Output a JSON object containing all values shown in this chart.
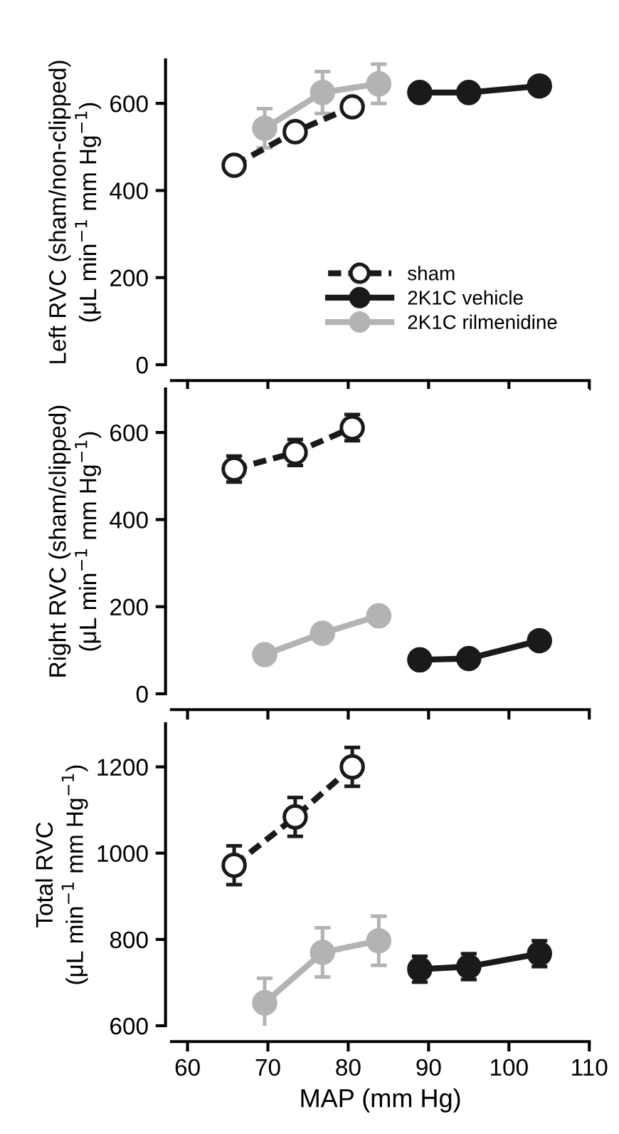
{
  "chart_data": [
    {
      "type": "line",
      "ylabel": "Left RVC (sham/non-clipped)\n(μL min$^{−1}$ mm Hg$^{−1}$)",
      "xlim": [
        58,
        110
      ],
      "xticks": [
        60,
        70,
        80,
        90,
        100,
        110
      ],
      "ylim": [
        0,
        700
      ],
      "yticks": [
        0,
        200,
        400,
        600
      ],
      "tick_labels": "y",
      "legend": "bottom right",
      "grid": false,
      "marker": "circle",
      "series": [
        {
          "name": "sham",
          "color": "#1a1a1a",
          "line_style": "dashed",
          "x": [
            65.8,
            73.4,
            80.5
          ],
          "values": [
            458,
            535,
            592
          ],
          "errors": [
            null,
            null,
            null
          ]
        },
        {
          "name": "2K1C vehicle",
          "color": "#1a1a1a",
          "line_style": "solid",
          "x": [
            88.9,
            95.0,
            103.8
          ],
          "values": [
            625,
            625,
            640
          ],
          "errors": [
            null,
            null,
            null
          ]
        },
        {
          "name": "2K1C rilmenidine",
          "color": "#b3b3b3",
          "line_style": "solid",
          "x": [
            69.6,
            76.8,
            83.8
          ],
          "values": [
            543,
            625,
            645
          ],
          "errors": [
            45,
            48,
            45
          ]
        }
      ]
    },
    {
      "type": "line",
      "ylabel": "Right RVC (sham/clipped)\n(μL min$^{−1}$ mm Hg$^{−1}$)",
      "xlim": [
        58,
        110
      ],
      "xticks": [
        60,
        70,
        80,
        90,
        100,
        110
      ],
      "ylim": [
        0,
        700
      ],
      "yticks": [
        0,
        200,
        400,
        600
      ],
      "tick_labels": "y",
      "grid": false,
      "marker": "circle",
      "series": [
        {
          "color": "#1a1a1a",
          "line_style": "dashed",
          "x": [
            65.8,
            73.4,
            80.5
          ],
          "values": [
            516,
            554,
            611
          ],
          "errors": [
            30,
            30,
            30
          ]
        },
        {
          "color": "#1a1a1a",
          "line_style": "solid",
          "x": [
            88.9,
            95.0,
            103.8
          ],
          "values": [
            78,
            81,
            122
          ],
          "errors": [
            null,
            null,
            null
          ]
        },
        {
          "color": "#b3b3b3",
          "line_style": "solid",
          "x": [
            69.6,
            76.8,
            83.8
          ],
          "values": [
            90,
            139,
            179
          ],
          "errors": [
            null,
            null,
            null
          ]
        }
      ]
    },
    {
      "type": "line",
      "xlabel": "MAP (mm Hg)",
      "ylabel": "Total RVC\n(μL min$^{−1}$ mm Hg$^{−1}$)",
      "xlim": [
        58,
        110
      ],
      "xticks": [
        60,
        70,
        80,
        90,
        100,
        110
      ],
      "ylim": [
        600,
        1300
      ],
      "yticks": [
        600,
        800,
        1000,
        1200
      ],
      "grid": false,
      "marker": "circle",
      "series": [
        {
          "color": "#1a1a1a",
          "line_style": "dashed",
          "x": [
            65.8,
            73.4,
            80.5
          ],
          "values": [
            972,
            1084,
            1200
          ],
          "errors": [
            45,
            45,
            45
          ]
        },
        {
          "color": "#1a1a1a",
          "line_style": "solid",
          "x": [
            88.9,
            95.0,
            103.8
          ],
          "values": [
            731,
            737,
            767
          ],
          "errors": [
            30,
            30,
            30
          ]
        },
        {
          "color": "#b3b3b3",
          "line_style": "solid",
          "x": [
            69.6,
            76.8,
            83.8
          ],
          "values": [
            653,
            770,
            797
          ],
          "errors": [
            57,
            57,
            57
          ]
        }
      ]
    }
  ]
}
